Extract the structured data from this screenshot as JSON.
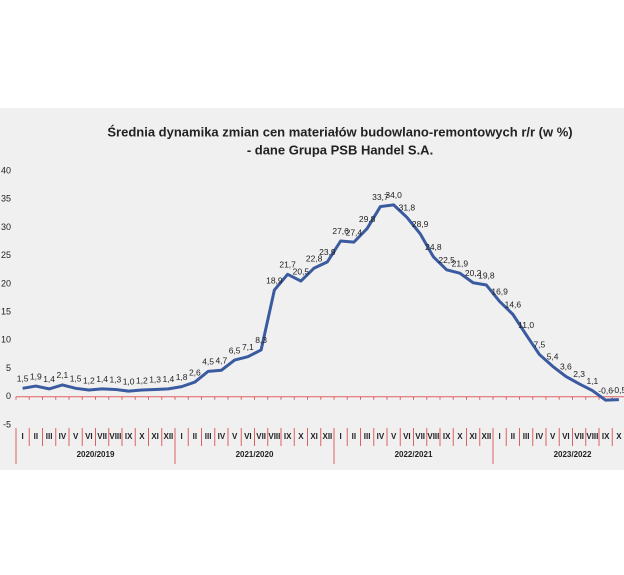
{
  "chart_data": {
    "type": "line",
    "title": [
      "Średnia dynamika zmian cen materiałów budowlano-remontowych r/r (w %)",
      "- dane Grupa PSB Handel S.A."
    ],
    "categories": [
      "I",
      "II",
      "III",
      "IV",
      "V",
      "VI",
      "VII",
      "VIII",
      "IX",
      "X",
      "XI",
      "XII",
      "I",
      "II",
      "III",
      "IV",
      "V",
      "VI",
      "VII",
      "VIII",
      "IX",
      "X",
      "XI",
      "XII",
      "I",
      "II",
      "III",
      "IV",
      "V",
      "VI",
      "VII",
      "VIII",
      "IX",
      "X",
      "XI",
      "XII",
      "I",
      "II",
      "III",
      "IV",
      "V",
      "VI",
      "VII",
      "VIII",
      "IX",
      "X"
    ],
    "groups": [
      "2020/2019",
      "2021/2020",
      "2022/2021",
      "2023/2022"
    ],
    "series": [
      {
        "color": "#3a5ba0",
        "values": [
          1.5,
          1.9,
          1.4,
          2.1,
          1.5,
          1.2,
          1.4,
          1.3,
          1.0,
          1.2,
          1.3,
          1.4,
          1.8,
          2.6,
          4.5,
          4.7,
          6.5,
          7.1,
          8.3,
          18.9,
          21.7,
          20.5,
          22.8,
          23.9,
          27.6,
          27.4,
          29.8,
          33.7,
          34.0,
          31.8,
          28.9,
          24.8,
          22.5,
          21.9,
          20.2,
          19.8,
          16.9,
          14.6,
          11.0,
          7.5,
          5.4,
          3.6,
          2.3,
          1.1,
          -0.6,
          -0.5
        ],
        "value_labels": [
          "1,5",
          "1,9",
          "1,4",
          "2,1",
          "1,5",
          "1,2",
          "1,4",
          "1,3",
          "1,0",
          "1,2",
          "1,3",
          "1,4",
          "1,8",
          "2,6",
          "4,5",
          "4,7",
          "6,5",
          "7,1",
          "8,3",
          "18,9",
          "21,7",
          "20,5",
          "22,8",
          "23,9",
          "27,6",
          "27,4",
          "29,8",
          "33,7",
          "34,0",
          "31,8",
          "28,9",
          "24,8",
          "22,5",
          "21,9",
          "20,2",
          "19,8",
          "16,9",
          "14,6",
          "11,0",
          "7,5",
          "5,4",
          "3,6",
          "2,3",
          "1,1",
          "-0,6",
          "-0,5"
        ]
      }
    ],
    "ylim": [
      -5,
      40
    ],
    "yticks": [
      -5,
      0,
      5,
      10,
      15,
      20,
      25,
      30,
      35,
      40
    ],
    "grid": false
  }
}
